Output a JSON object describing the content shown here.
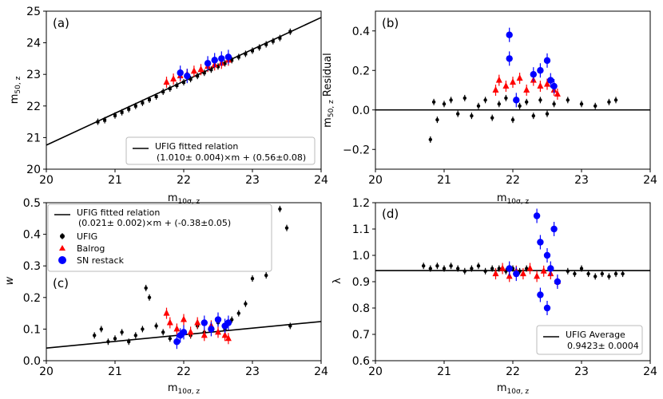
{
  "figure": {
    "background": "#ffffff",
    "colors": {
      "ufig": "#000000",
      "balrog": "#ff0000",
      "sn": "#0000ff",
      "line": "#000000"
    }
  },
  "chart_data": [
    {
      "id": "a",
      "type": "scatter",
      "panel_label": "(a)",
      "xlabel": "m10σ, z",
      "ylabel": "m50, z",
      "xlim": [
        20,
        24
      ],
      "ylim": [
        20,
        25
      ],
      "xticks": [
        "20",
        "21",
        "22",
        "23",
        "24"
      ],
      "yticks": [
        "20",
        "21",
        "22",
        "23",
        "24",
        "25"
      ],
      "fit": {
        "slope": 1.01,
        "intercept": 0.56
      },
      "legend": [
        "UFIG fitted relation",
        "(1.010± 0.004)×m + (0.56±0.08)"
      ],
      "series": [
        {
          "name": "UFIG",
          "marker": "square",
          "points": [
            [
              20.75,
              21.5
            ],
            [
              20.85,
              21.55
            ],
            [
              21.0,
              21.7
            ],
            [
              21.1,
              21.8
            ],
            [
              21.2,
              21.9
            ],
            [
              21.3,
              22.0
            ],
            [
              21.4,
              22.1
            ],
            [
              21.5,
              22.2
            ],
            [
              21.6,
              22.3
            ],
            [
              21.7,
              22.45
            ],
            [
              21.8,
              22.55
            ],
            [
              21.9,
              22.65
            ],
            [
              22.0,
              22.75
            ],
            [
              22.1,
              22.85
            ],
            [
              22.2,
              22.95
            ],
            [
              22.3,
              23.05
            ],
            [
              22.4,
              23.15
            ],
            [
              22.5,
              23.25
            ],
            [
              22.6,
              23.35
            ],
            [
              22.7,
              23.45
            ],
            [
              22.8,
              23.55
            ],
            [
              22.9,
              23.65
            ],
            [
              23.0,
              23.75
            ],
            [
              23.1,
              23.85
            ],
            [
              23.2,
              23.95
            ],
            [
              23.3,
              24.05
            ],
            [
              23.4,
              24.15
            ],
            [
              23.55,
              24.35
            ]
          ]
        },
        {
          "name": "Balrog",
          "marker": "triangle",
          "points": [
            [
              21.75,
              22.75
            ],
            [
              21.85,
              22.85
            ],
            [
              21.95,
              22.95
            ],
            [
              22.05,
              23.0
            ],
            [
              22.15,
              23.1
            ],
            [
              22.25,
              23.15
            ],
            [
              22.35,
              23.25
            ],
            [
              22.45,
              23.3
            ],
            [
              22.55,
              23.35
            ],
            [
              22.65,
              23.45
            ]
          ]
        },
        {
          "name": "SN restack",
          "marker": "circle",
          "points": [
            [
              21.95,
              23.05
            ],
            [
              22.05,
              22.95
            ],
            [
              22.35,
              23.35
            ],
            [
              22.45,
              23.45
            ],
            [
              22.55,
              23.5
            ],
            [
              22.65,
              23.55
            ]
          ]
        }
      ]
    },
    {
      "id": "b",
      "type": "scatter",
      "panel_label": "(b)",
      "xlabel": "m10σ, z",
      "ylabel": "m50, z Residual",
      "xlim": [
        20,
        24
      ],
      "ylim": [
        -0.3,
        0.5
      ],
      "xticks": [
        "20",
        "21",
        "22",
        "23",
        "24"
      ],
      "yticks": [
        "−0.2",
        "0.0",
        "0.2",
        "0.4"
      ],
      "hline": 0.0,
      "series": [
        {
          "name": "UFIG",
          "marker": "circle",
          "points": [
            [
              20.8,
              -0.15
            ],
            [
              20.85,
              0.04
            ],
            [
              20.9,
              -0.05
            ],
            [
              21.0,
              0.03
            ],
            [
              21.1,
              0.05
            ],
            [
              21.2,
              -0.02
            ],
            [
              21.3,
              0.06
            ],
            [
              21.4,
              -0.03
            ],
            [
              21.5,
              0.02
            ],
            [
              21.6,
              0.05
            ],
            [
              21.7,
              -0.04
            ],
            [
              21.8,
              0.03
            ],
            [
              21.9,
              0.06
            ],
            [
              22.0,
              -0.05
            ],
            [
              22.1,
              0.02
            ],
            [
              22.2,
              0.04
            ],
            [
              22.3,
              -0.03
            ],
            [
              22.4,
              0.05
            ],
            [
              22.5,
              -0.02
            ],
            [
              22.6,
              0.03
            ],
            [
              22.8,
              0.05
            ],
            [
              23.0,
              0.03
            ],
            [
              23.2,
              0.02
            ],
            [
              23.4,
              0.04
            ],
            [
              23.5,
              0.05
            ]
          ]
        },
        {
          "name": "Balrog",
          "marker": "triangle",
          "points": [
            [
              21.75,
              0.1
            ],
            [
              21.8,
              0.15
            ],
            [
              21.9,
              0.12
            ],
            [
              22.0,
              0.14
            ],
            [
              22.1,
              0.16
            ],
            [
              22.2,
              0.1
            ],
            [
              22.3,
              0.15
            ],
            [
              22.4,
              0.12
            ],
            [
              22.5,
              0.13
            ],
            [
              22.6,
              0.1
            ],
            [
              22.65,
              0.08
            ]
          ]
        },
        {
          "name": "SN restack",
          "marker": "circle",
          "points": [
            [
              21.95,
              0.38
            ],
            [
              21.95,
              0.26
            ],
            [
              22.05,
              0.05
            ],
            [
              22.3,
              0.18
            ],
            [
              22.4,
              0.2
            ],
            [
              22.5,
              0.25
            ],
            [
              22.55,
              0.15
            ],
            [
              22.6,
              0.12
            ]
          ]
        }
      ]
    },
    {
      "id": "c",
      "type": "scatter",
      "panel_label": "(c)",
      "xlabel": "m10σ, z",
      "ylabel": "w",
      "xlim": [
        20,
        24
      ],
      "ylim": [
        0,
        0.5
      ],
      "xticks": [
        "20",
        "21",
        "22",
        "23",
        "24"
      ],
      "yticks": [
        "0.0",
        "0.1",
        "0.2",
        "0.3",
        "0.4",
        "0.5"
      ],
      "fit": {
        "slope": 0.021,
        "intercept": -0.38
      },
      "legend": [
        "UFIG fitted relation",
        "(0.021± 0.002)×m + (-0.38±0.05)",
        "UFIG",
        "Balrog",
        "SN restack"
      ],
      "series": [
        {
          "name": "UFIG",
          "marker": "circle",
          "points": [
            [
              20.7,
              0.08
            ],
            [
              20.8,
              0.1
            ],
            [
              20.9,
              0.06
            ],
            [
              21.0,
              0.07
            ],
            [
              21.1,
              0.09
            ],
            [
              21.2,
              0.06
            ],
            [
              21.3,
              0.08
            ],
            [
              21.4,
              0.1
            ],
            [
              21.45,
              0.23
            ],
            [
              21.5,
              0.2
            ],
            [
              21.6,
              0.11
            ],
            [
              21.7,
              0.09
            ],
            [
              21.8,
              0.07
            ],
            [
              21.9,
              0.1
            ],
            [
              22.0,
              0.09
            ],
            [
              22.1,
              0.08
            ],
            [
              22.2,
              0.11
            ],
            [
              22.3,
              0.09
            ],
            [
              22.4,
              0.1
            ],
            [
              22.5,
              0.12
            ],
            [
              22.6,
              0.1
            ],
            [
              22.7,
              0.13
            ],
            [
              22.8,
              0.15
            ],
            [
              22.9,
              0.18
            ],
            [
              23.0,
              0.26
            ],
            [
              23.05,
              0.41
            ],
            [
              23.2,
              0.27
            ],
            [
              23.4,
              0.48
            ],
            [
              23.5,
              0.42
            ],
            [
              23.55,
              0.11
            ]
          ]
        },
        {
          "name": "Balrog",
          "marker": "triangle",
          "points": [
            [
              21.75,
              0.15
            ],
            [
              21.8,
              0.12
            ],
            [
              21.9,
              0.1
            ],
            [
              22.0,
              0.13
            ],
            [
              22.1,
              0.09
            ],
            [
              22.2,
              0.12
            ],
            [
              22.3,
              0.08
            ],
            [
              22.4,
              0.11
            ],
            [
              22.5,
              0.09
            ],
            [
              22.6,
              0.08
            ],
            [
              22.65,
              0.07
            ]
          ]
        },
        {
          "name": "SN restack",
          "marker": "circle",
          "points": [
            [
              21.9,
              0.06
            ],
            [
              21.95,
              0.08
            ],
            [
              22.0,
              0.09
            ],
            [
              22.3,
              0.12
            ],
            [
              22.4,
              0.1
            ],
            [
              22.5,
              0.13
            ],
            [
              22.6,
              0.11
            ],
            [
              22.65,
              0.12
            ]
          ]
        }
      ]
    },
    {
      "id": "d",
      "type": "scatter",
      "panel_label": "(d)",
      "xlabel": "m10σ, z",
      "ylabel": "λ",
      "xlim": [
        20,
        24
      ],
      "ylim": [
        0.6,
        1.2
      ],
      "xticks": [
        "20",
        "21",
        "22",
        "23",
        "24"
      ],
      "yticks": [
        "0.6",
        "0.7",
        "0.8",
        "0.9",
        "1.0",
        "1.1",
        "1.2"
      ],
      "hline": 0.9423,
      "legend": [
        "UFIG Average",
        "0.9423± 0.0004"
      ],
      "series": [
        {
          "name": "UFIG",
          "marker": "circle",
          "points": [
            [
              20.7,
              0.96
            ],
            [
              20.8,
              0.95
            ],
            [
              20.9,
              0.96
            ],
            [
              21.0,
              0.95
            ],
            [
              21.1,
              0.96
            ],
            [
              21.2,
              0.95
            ],
            [
              21.3,
              0.94
            ],
            [
              21.4,
              0.95
            ],
            [
              21.5,
              0.96
            ],
            [
              21.6,
              0.94
            ],
            [
              21.7,
              0.95
            ],
            [
              21.8,
              0.95
            ],
            [
              21.9,
              0.94
            ],
            [
              22.0,
              0.95
            ],
            [
              22.1,
              0.94
            ],
            [
              22.2,
              0.95
            ],
            [
              22.8,
              0.94
            ],
            [
              22.9,
              0.93
            ],
            [
              23.0,
              0.95
            ],
            [
              23.1,
              0.93
            ],
            [
              23.2,
              0.92
            ],
            [
              23.3,
              0.93
            ],
            [
              23.4,
              0.92
            ],
            [
              23.5,
              0.93
            ],
            [
              23.6,
              0.93
            ]
          ]
        },
        {
          "name": "Balrog",
          "marker": "triangle",
          "points": [
            [
              21.75,
              0.93
            ],
            [
              21.85,
              0.95
            ],
            [
              21.95,
              0.92
            ],
            [
              22.05,
              0.94
            ],
            [
              22.15,
              0.93
            ],
            [
              22.25,
              0.95
            ],
            [
              22.35,
              0.92
            ],
            [
              22.45,
              0.94
            ],
            [
              22.55,
              0.93
            ],
            [
              22.65,
              0.9
            ]
          ]
        },
        {
          "name": "SN restack",
          "marker": "circle",
          "points": [
            [
              21.95,
              0.95
            ],
            [
              22.05,
              0.93
            ],
            [
              22.35,
              1.15
            ],
            [
              22.4,
              1.05
            ],
            [
              22.4,
              0.85
            ],
            [
              22.5,
              1.0
            ],
            [
              22.5,
              0.8
            ],
            [
              22.55,
              0.95
            ],
            [
              22.6,
              1.1
            ],
            [
              22.65,
              0.9
            ]
          ]
        }
      ]
    }
  ]
}
